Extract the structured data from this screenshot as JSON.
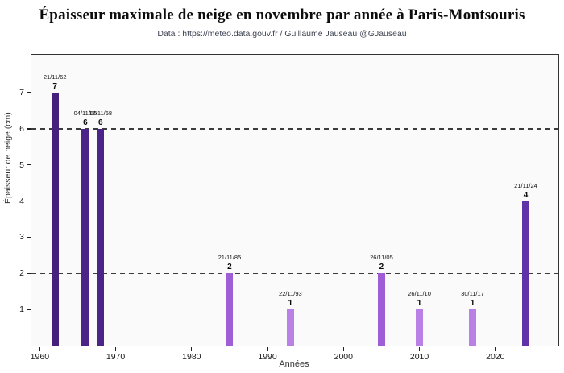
{
  "chart_data": {
    "type": "bar",
    "title": "Épaisseur maximale de neige en novembre par année à Paris-Montsouris",
    "subtitle": "Data : https://meteo.data.gouv.fr / Guillaume Jauseau @GJauseau",
    "xlabel": "Années",
    "ylabel": "Épaisseur de neige (cm)",
    "xlim": [
      1958.9,
      2028.3
    ],
    "ylim": [
      0,
      8.05
    ],
    "xticks": [
      1960,
      1970,
      1980,
      1990,
      2000,
      2010,
      2020
    ],
    "yticks": [
      1,
      2,
      3,
      4,
      5,
      6,
      7
    ],
    "gridlines": [
      2,
      4,
      6
    ],
    "grid_style": "dashed",
    "legend": "none",
    "plot_background": "#fafafa",
    "frame_color": "#333333",
    "bars": [
      {
        "date": "21/11/62",
        "year": 1962,
        "value": 7,
        "color": "#45207c"
      },
      {
        "date": "04/11/66",
        "year": 1966,
        "value": 6,
        "color": "#4c2489"
      },
      {
        "date": "17/11/68",
        "year": 1968,
        "value": 6,
        "color": "#4c2489"
      },
      {
        "date": "21/11/85",
        "year": 1985,
        "value": 2,
        "color": "#9e5ed5"
      },
      {
        "date": "22/11/93",
        "year": 1993,
        "value": 1,
        "color": "#b981e6"
      },
      {
        "date": "26/11/05",
        "year": 2005,
        "value": 2,
        "color": "#9e5ed5"
      },
      {
        "date": "26/11/10",
        "year": 2010,
        "value": 1,
        "color": "#b981e6"
      },
      {
        "date": "30/11/17",
        "year": 2017,
        "value": 1,
        "color": "#b981e6"
      },
      {
        "date": "21/11/24",
        "year": 2024,
        "value": 4,
        "color": "#6131a8"
      }
    ]
  }
}
